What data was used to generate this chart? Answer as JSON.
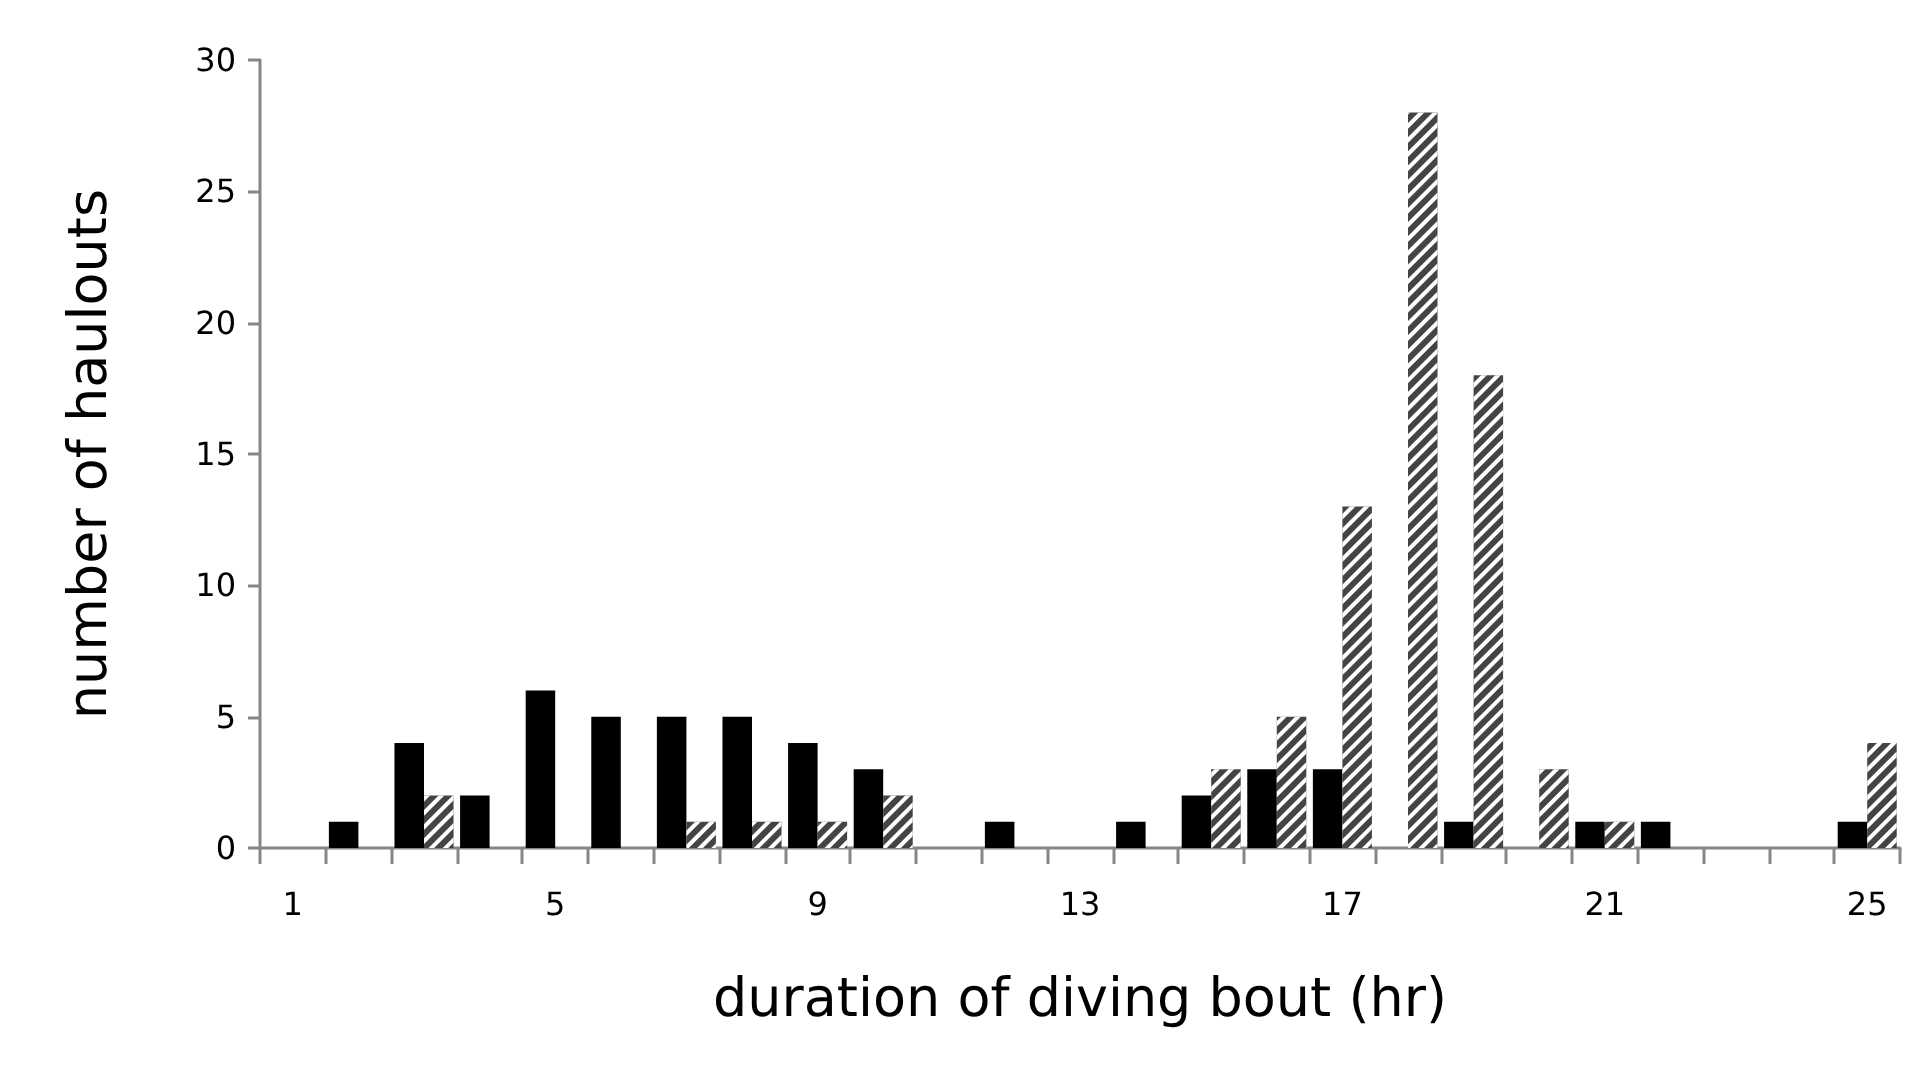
{
  "chart_data": {
    "type": "bar",
    "xlabel": "duration of diving bout (hr)",
    "ylabel": "number of haulouts",
    "categories": [
      "1",
      null,
      null,
      null,
      "5",
      null,
      null,
      null,
      "9",
      null,
      null,
      null,
      "13",
      null,
      null,
      null,
      "17",
      null,
      null,
      null,
      "21",
      null,
      null,
      null,
      "25"
    ],
    "series": [
      {
        "color": "#000000",
        "values": [
          0,
          1,
          4,
          2,
          6,
          5,
          5,
          5,
          4,
          3,
          0,
          1,
          0,
          1,
          2,
          3,
          3,
          0,
          1,
          0,
          1,
          1,
          0,
          0,
          1
        ]
      },
      {
        "color": "#444444",
        "values": [
          0,
          0,
          2,
          0,
          0,
          0,
          1,
          1,
          1,
          2,
          0,
          0,
          0,
          0,
          3,
          5,
          13,
          28,
          18,
          3,
          1,
          0,
          0,
          0,
          4
        ]
      }
    ],
    "ylim": [
      0,
      30
    ],
    "yticks": [
      0,
      5,
      10,
      15,
      20,
      25,
      30
    ],
    "grid": false
  }
}
